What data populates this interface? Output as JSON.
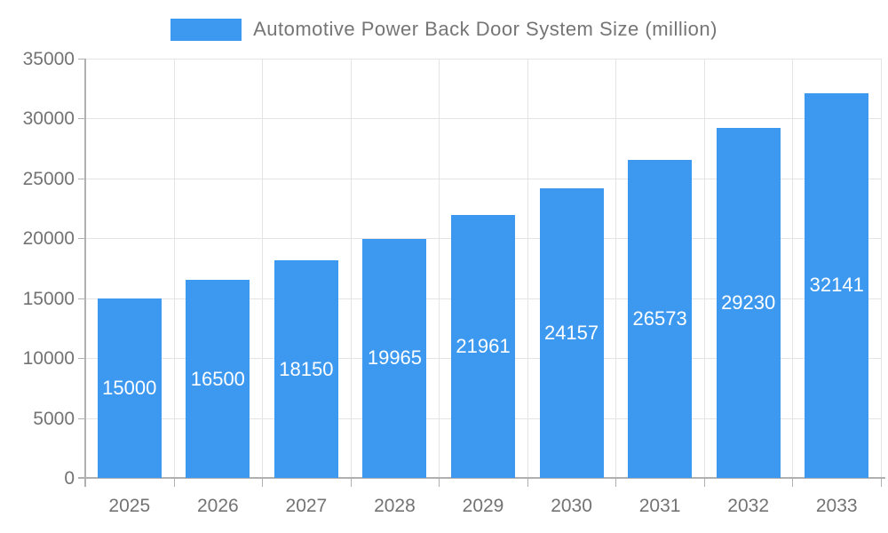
{
  "chart_data": {
    "type": "bar",
    "title": "Automotive Power Back Door System Size (million)",
    "categories": [
      "2025",
      "2026",
      "2027",
      "2028",
      "2029",
      "2030",
      "2031",
      "2032",
      "2033"
    ],
    "values": [
      15000,
      16500,
      18150,
      19965,
      21961,
      24157,
      26573,
      29230,
      32141
    ],
    "xlabel": "",
    "ylabel": "",
    "ylim": [
      0,
      35000
    ],
    "ytick_step": 5000,
    "ytick_labels": [
      "0",
      "5000",
      "10000",
      "15000",
      "20000",
      "25000",
      "30000",
      "35000"
    ],
    "grid": true,
    "legend_position": "top-center",
    "colors": {
      "bar": "#3D99F0",
      "bar_value_text": "#ffffff",
      "axis_line": "#b0b0b0",
      "gridline": "#e4e4e4",
      "axis_text": "#737373",
      "legend_text": "#757575",
      "background": "#ffffff"
    }
  }
}
